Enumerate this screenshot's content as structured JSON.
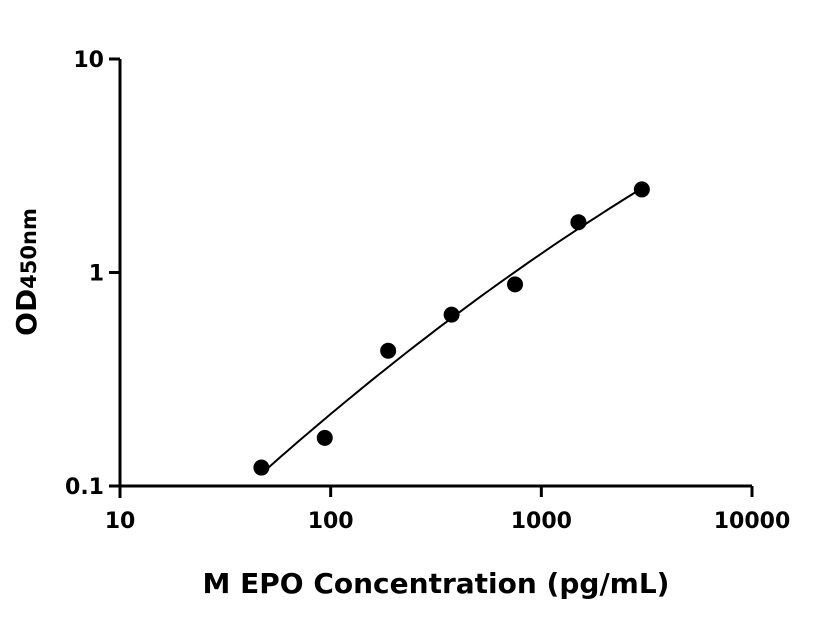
{
  "chart_data": {
    "type": "scatter",
    "title": "",
    "xlabel": "M EPO Concentration (pg/mL)",
    "ylabel_main": "OD",
    "ylabel_sub": "450nm",
    "x_scale": "log",
    "y_scale": "log",
    "xlim": [
      10,
      10000
    ],
    "ylim": [
      0.1,
      10
    ],
    "x_ticks": [
      "10",
      "100",
      "1000",
      "10000"
    ],
    "y_ticks": [
      "0.1",
      "1",
      "10"
    ],
    "grid": false,
    "series": [
      {
        "x": [
          46.9,
          93.75,
          187.5,
          375,
          750,
          1500,
          3000
        ],
        "y": [
          0.122,
          0.168,
          0.43,
          0.635,
          0.88,
          1.72,
          2.45
        ],
        "marker": "circle",
        "fit_line": true
      }
    ],
    "colors": {
      "points": "#000000",
      "line": "#000000",
      "axes": "#000000"
    }
  }
}
